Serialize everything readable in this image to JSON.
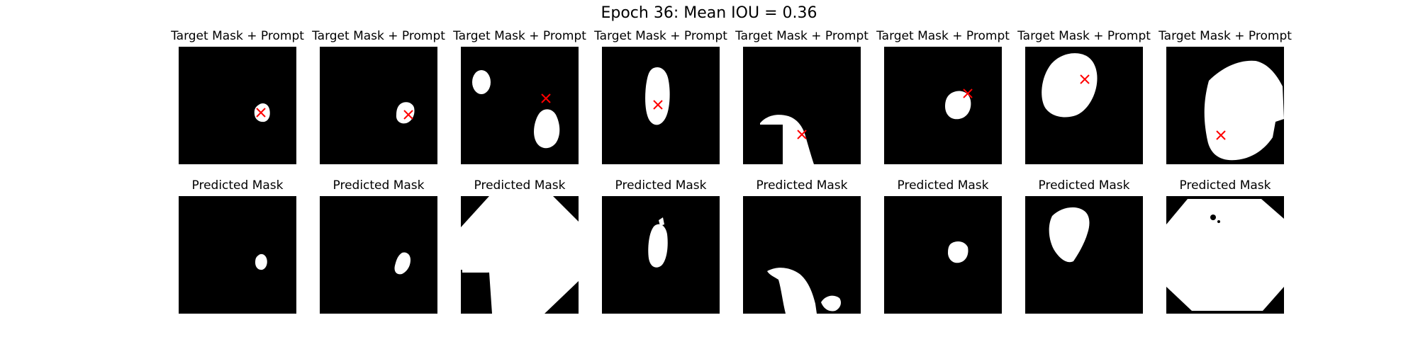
{
  "figure": {
    "suptitle": "Epoch 36: Mean IOU = 0.36"
  },
  "colors": {
    "background": "#ffffff",
    "mask_background": "#000000",
    "mask_foreground": "#ffffff",
    "prompt_marker": "#ff0000"
  },
  "rows": [
    {
      "name": "target",
      "panels": [
        {
          "title": "Target Mask + Prompt"
        },
        {
          "title": "Target Mask + Prompt"
        },
        {
          "title": "Target Mask + Prompt"
        },
        {
          "title": "Target Mask + Prompt"
        },
        {
          "title": "Target Mask + Prompt"
        },
        {
          "title": "Target Mask + Prompt"
        },
        {
          "title": "Target Mask + Prompt"
        },
        {
          "title": "Target Mask + Prompt"
        }
      ]
    },
    {
      "name": "predicted",
      "panels": [
        {
          "title": "Predicted Mask"
        },
        {
          "title": "Predicted Mask"
        },
        {
          "title": "Predicted Mask"
        },
        {
          "title": "Predicted Mask"
        },
        {
          "title": "Predicted Mask"
        },
        {
          "title": "Predicted Mask"
        },
        {
          "title": "Predicted Mask"
        },
        {
          "title": "Predicted Mask"
        }
      ]
    }
  ]
}
